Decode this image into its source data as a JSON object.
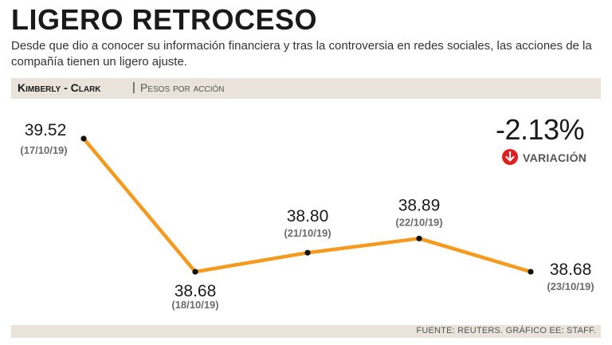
{
  "header": {
    "title": "LIGERO RETROCESO",
    "subtitle": "Desde que dio a conocer su información financiera y tras la controversia en redes sociales, las acciones de la compañía tienen un ligero ajuste."
  },
  "series_bar": {
    "name": "Kimberly - Clark",
    "separator": "|",
    "unit": "Pesos por acción"
  },
  "variation": {
    "value": "-2.13%",
    "label": "VARIACIÓN",
    "icon": "down-arrow-circle-icon",
    "icon_color": "#e02020"
  },
  "footer": {
    "source": "FUENTE: REUTERS. GRÁFICO EE: STAFF."
  },
  "colors": {
    "line": "#f39a1f",
    "point": "#111111"
  },
  "chart_data": {
    "type": "line",
    "categories": [
      "17/10/19",
      "18/10/19",
      "21/10/19",
      "22/10/19",
      "23/10/19"
    ],
    "date_labels": [
      "(17/10/19)",
      "(18/10/19)",
      "(21/10/19)",
      "(22/10/19)",
      "(23/10/19)"
    ],
    "value_labels": [
      "39.52",
      "38.68",
      "38.80",
      "38.89",
      "38.68"
    ],
    "series": [
      {
        "values": [
          39.52,
          38.68,
          38.8,
          38.89,
          38.68
        ]
      }
    ],
    "ylabel": "Pesos por acción",
    "grid": false
  }
}
